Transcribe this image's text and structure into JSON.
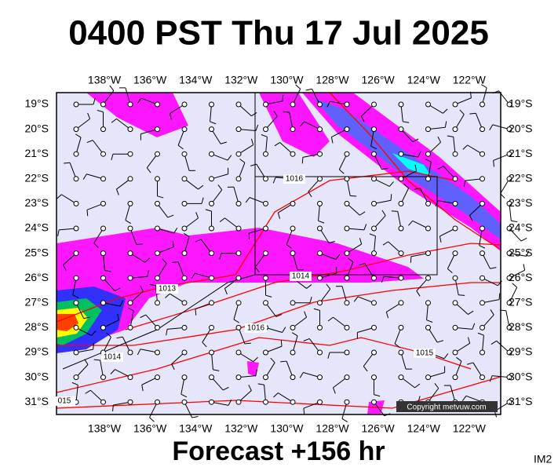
{
  "header": {
    "title": "0400 PST Thu 17 Jul 2025"
  },
  "axes": {
    "longitudes": [
      "138°W",
      "136°W",
      "134°W",
      "132°W",
      "130°W",
      "128°W",
      "126°W",
      "124°W",
      "122°W"
    ],
    "latitudes": [
      "19°S",
      "20°S",
      "21°S",
      "22°S",
      "23°S",
      "24°S",
      "25°S",
      "26°S",
      "27°S",
      "28°S",
      "29°S",
      "30°S",
      "31°S"
    ]
  },
  "isobar_labels": [
    "1016",
    "1013",
    "1014",
    "1016",
    "1014",
    "1015",
    "015"
  ],
  "copyright": "Copyright metvuw.com",
  "footer": {
    "forecast": "Forecast +156 hr",
    "id": "IM2"
  }
}
